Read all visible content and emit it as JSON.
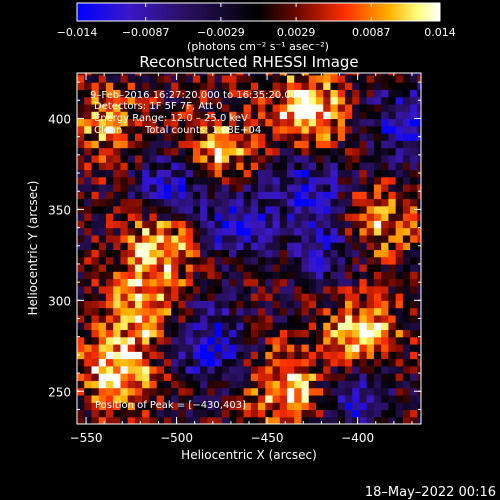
{
  "chart_data": {
    "type": "heatmap",
    "title": "Reconstructed RHESSI Image",
    "xlabel": "Heliocentric X (arcsec)",
    "ylabel": "Heliocentric Y (arcsec)",
    "xlim": [
      -555,
      -365
    ],
    "ylim": [
      232,
      425
    ],
    "x_ticks": [
      -550,
      -500,
      -450,
      -400
    ],
    "y_ticks": [
      250,
      300,
      350,
      400
    ],
    "colorbar": {
      "min": -0.014,
      "max": 0.014,
      "tick_labels": [
        "−0.014",
        "−0.0087",
        "−0.0029",
        "0.0029",
        "0.0087",
        "0.014"
      ],
      "tick_values": [
        -0.014,
        -0.0087,
        -0.0029,
        0.0029,
        0.0087,
        0.014
      ],
      "unit_label": "(photons cm⁻² s⁻¹ asec⁻²)",
      "colormap": [
        "#0000ff",
        "#3a18c8",
        "#2a1060",
        "#000000",
        "#7a0a00",
        "#ff3000",
        "#ffb000",
        "#ffff80",
        "#ffffff"
      ]
    },
    "annotations": {
      "time": "9–Feb–2016 16:27:20.000 to 16:35:20.000",
      "detectors": "Detectors: 1F 5F 7F, Att 0",
      "energy": "Energy Range: 12.0 – 25.0 keV",
      "clean": "Clean",
      "counts": "Total counts: 1.68E+04",
      "peak": "Position of Peak = [−430,403]"
    },
    "peak_position": [
      -430,
      403
    ],
    "grid": false,
    "bright_sources": [
      {
        "x": -535,
        "y": 260,
        "intensity": 0.013
      },
      {
        "x": -510,
        "y": 330,
        "intensity": 0.012
      },
      {
        "x": -520,
        "y": 295,
        "intensity": 0.011
      },
      {
        "x": -480,
        "y": 380,
        "intensity": 0.01
      },
      {
        "x": -430,
        "y": 403,
        "intensity": 0.014
      },
      {
        "x": -440,
        "y": 250,
        "intensity": 0.012
      },
      {
        "x": -400,
        "y": 280,
        "intensity": 0.012
      },
      {
        "x": -390,
        "y": 340,
        "intensity": 0.009
      },
      {
        "x": -540,
        "y": 395,
        "intensity": 0.009
      }
    ],
    "dark_sources": [
      {
        "x": -505,
        "y": 360,
        "intensity": -0.012
      },
      {
        "x": -470,
        "y": 340,
        "intensity": -0.011
      },
      {
        "x": -485,
        "y": 275,
        "intensity": -0.012
      },
      {
        "x": -430,
        "y": 360,
        "intensity": -0.01
      },
      {
        "x": -375,
        "y": 395,
        "intensity": -0.011
      },
      {
        "x": -420,
        "y": 325,
        "intensity": -0.008
      },
      {
        "x": -405,
        "y": 245,
        "intensity": -0.01
      }
    ]
  },
  "footer": {
    "date": "18–May–2022 00:16"
  }
}
